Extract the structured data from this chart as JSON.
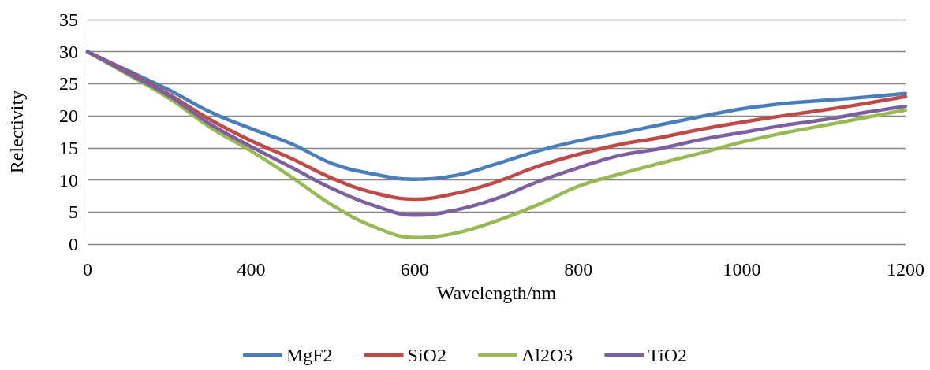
{
  "chart_data": {
    "type": "line",
    "xlabel": "Wavelength/nm",
    "ylabel": "Relectivity",
    "categories": [
      "0",
      null,
      null,
      null,
      "400",
      null,
      null,
      null,
      "600",
      null,
      null,
      null,
      "800",
      null,
      null,
      null,
      "1000",
      null,
      null,
      null,
      "1200"
    ],
    "series": [
      {
        "name": "MgF2",
        "color": "#4a7ebb",
        "values": [
          30,
          27.0,
          24.0,
          20.6,
          18.0,
          15.6,
          12.5,
          10.9,
          10.1,
          10.7,
          12.5,
          14.5,
          16.1,
          17.3,
          18.6,
          19.9,
          21.1,
          21.9,
          22.4,
          22.9,
          23.5
        ]
      },
      {
        "name": "SiO2",
        "color": "#be4b48",
        "values": [
          30,
          26.8,
          23.3,
          19.4,
          16.1,
          13.3,
          10.2,
          8.0,
          7.0,
          7.9,
          9.7,
          12.1,
          14.0,
          15.5,
          16.6,
          17.9,
          19.0,
          20.0,
          20.9,
          21.9,
          23.0
        ]
      },
      {
        "name": "Al2O3",
        "color": "#98b954",
        "values": [
          30,
          26.4,
          22.7,
          18.2,
          14.5,
          10.4,
          6.0,
          2.7,
          1.0,
          1.7,
          3.6,
          6.1,
          9.0,
          10.9,
          12.6,
          14.2,
          15.9,
          17.3,
          18.5,
          19.7,
          20.9
        ]
      },
      {
        "name": "TiO2",
        "color": "#7d60a0",
        "values": [
          30,
          26.6,
          23.1,
          18.7,
          15.2,
          11.9,
          8.6,
          6.0,
          4.5,
          5.3,
          7.1,
          9.7,
          11.9,
          13.8,
          14.9,
          16.3,
          17.4,
          18.5,
          19.4,
          20.5,
          21.5
        ]
      }
    ],
    "ylim": [
      0,
      35
    ],
    "yticks": [
      0,
      5,
      10,
      15,
      20,
      25,
      30,
      35
    ],
    "grid": "y",
    "legend": "bottom",
    "marker": "none",
    "line_style": "solid"
  }
}
